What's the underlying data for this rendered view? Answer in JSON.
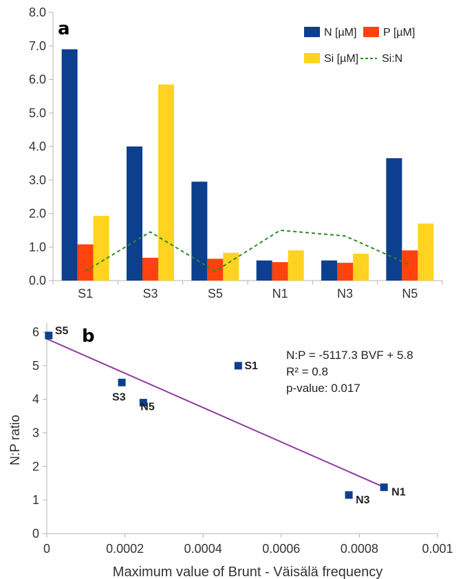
{
  "chart_data": [
    {
      "panel": "a",
      "type": "bar",
      "categories": [
        "S1",
        "S3",
        "S5",
        "N1",
        "N3",
        "N5"
      ],
      "ylim": [
        0,
        8
      ],
      "yticks": [
        "0.0",
        "1.0",
        "2.0",
        "3.0",
        "4.0",
        "5.0",
        "6.0",
        "7.0",
        "8.0"
      ],
      "legend_position": "top-right",
      "series": [
        {
          "name": "N [µM]",
          "kind": "bar",
          "color": "#0d3f8f",
          "values": [
            6.9,
            4.0,
            2.95,
            0.6,
            0.6,
            3.65
          ]
        },
        {
          "name": "P [µM]",
          "kind": "bar",
          "color": "#ff420e",
          "values": [
            1.08,
            0.68,
            0.65,
            0.55,
            0.53,
            0.9
          ]
        },
        {
          "name": "Si [µM]",
          "kind": "bar",
          "color": "#ffd320",
          "values": [
            1.93,
            5.85,
            0.83,
            0.9,
            0.8,
            1.7
          ]
        },
        {
          "name": "Si:N",
          "kind": "line",
          "style": "dashed",
          "color": "#2e8b22",
          "values": [
            0.28,
            1.45,
            0.28,
            1.5,
            1.33,
            0.47
          ]
        }
      ]
    },
    {
      "panel": "b",
      "type": "scatter",
      "xlabel": "Maximum value of Brunt - Väisälä frequency",
      "ylabel": "N:P ratio",
      "xlim": [
        0,
        0.001
      ],
      "ylim": [
        0,
        6
      ],
      "xticks": [
        "0",
        "0.0002",
        "0.0004",
        "0.0006",
        "0.0008",
        "0.001"
      ],
      "yticks": [
        "0",
        "1",
        "2",
        "3",
        "4",
        "5",
        "6"
      ],
      "marker_color": "#0d3f8f",
      "trendline_color": "#8e3a9e",
      "points": [
        {
          "label": "S5",
          "x": 5e-06,
          "y": 5.9
        },
        {
          "label": "S1",
          "x": 0.00049,
          "y": 5.0
        },
        {
          "label": "S3",
          "x": 0.000192,
          "y": 4.5
        },
        {
          "label": "N5",
          "x": 0.000247,
          "y": 3.9
        },
        {
          "label": "N1",
          "x": 0.000863,
          "y": 1.38
        },
        {
          "label": "N3",
          "x": 0.000773,
          "y": 1.15
        }
      ],
      "trendline": {
        "slope": -5117.3,
        "intercept": 5.8,
        "x_range": [
          0,
          0.000865
        ]
      },
      "annotations": [
        "N:P = -5117.3 BVF + 5.8",
        "R² = 0.8",
        "p-value: 0.017"
      ]
    }
  ]
}
